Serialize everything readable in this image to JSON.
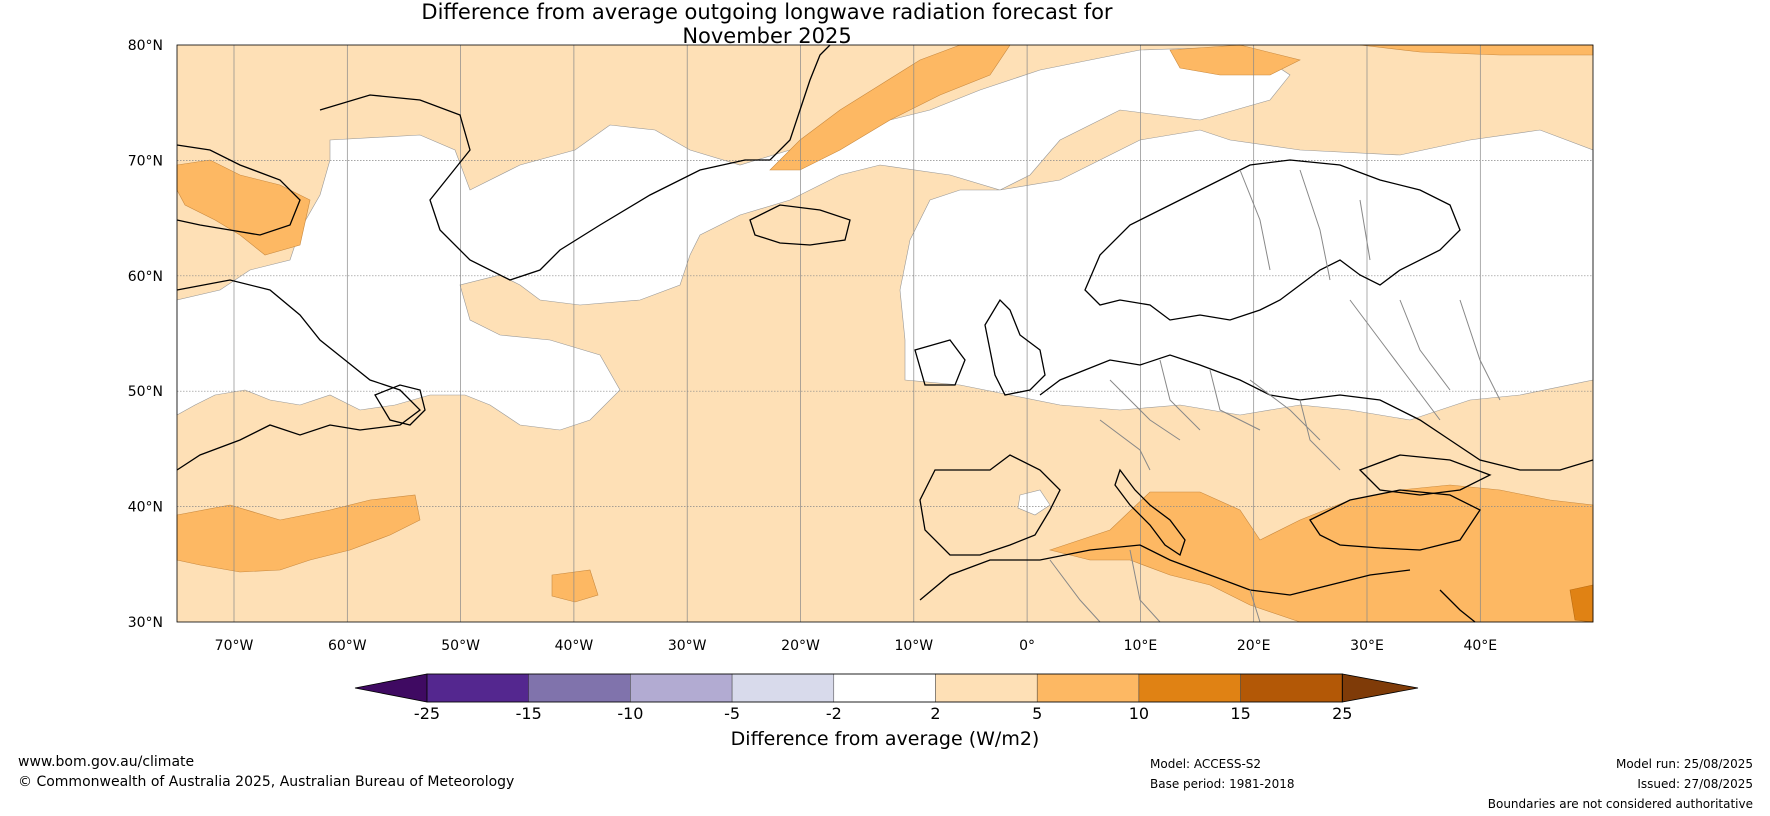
{
  "title": {
    "line1": "Difference from average outgoing longwave radiation forecast for",
    "line2": "November 2025"
  },
  "map": {
    "lat_labels": [
      "80°N",
      "70°N",
      "60°N",
      "50°N",
      "40°N",
      "30°N"
    ],
    "lon_labels": [
      "70°W",
      "60°W",
      "50°W",
      "40°W",
      "30°W",
      "20°W",
      "10°W",
      "0°",
      "10°E",
      "20°E",
      "30°E",
      "40°E"
    ],
    "land_color": "#ffffff",
    "coastline_color": "#000000",
    "border_color": "#888888"
  },
  "colorbar": {
    "ticks": [
      "-25",
      "-15",
      "-10",
      "-5",
      "-2",
      "2",
      "5",
      "10",
      "15",
      "25"
    ],
    "colors": [
      "#3f0a62",
      "#54278f",
      "#8073ac",
      "#b2abd2",
      "#d8daeb",
      "#ffffff",
      "#fee0b6",
      "#fdb863",
      "#e08214",
      "#b35806",
      "#7f3b08"
    ],
    "label": "Difference from average (W/m2)"
  },
  "footer": {
    "website": "www.bom.gov.au/climate",
    "copyright": "© Commonwealth of Australia 2025, Australian Bureau of Meteorology",
    "model": "Model: ACCESS-S2",
    "base_period": "Base period: 1981-2018",
    "model_run": "Model run: 25/08/2025",
    "issued": "Issued: 27/08/2025",
    "disclaimer": "Boundaries are not considered authoritative"
  }
}
